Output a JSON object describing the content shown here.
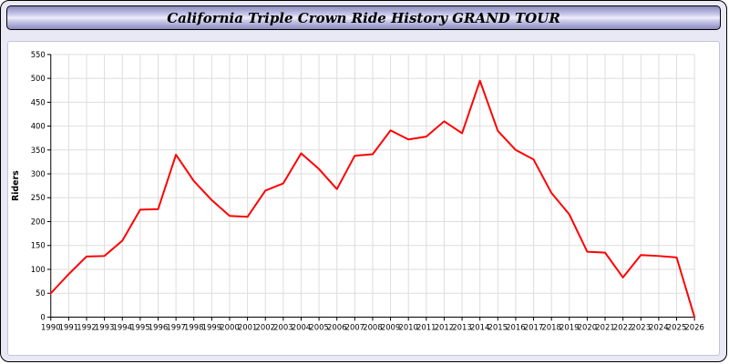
{
  "header": {
    "title": "California Triple Crown Ride History GRAND TOUR"
  },
  "colors": {
    "page_background": "#e9e9f5",
    "plot_background": "#ffffff",
    "grid": "#dddddd",
    "axis": "#000000",
    "line": "#ff0000"
  },
  "chart_data": {
    "type": "line",
    "title": "California Triple Crown Ride History GRAND TOUR",
    "xlabel": "",
    "ylabel": "Riders",
    "ylim": [
      0,
      550
    ],
    "ytick_step": 50,
    "grid": true,
    "legend": "none",
    "line_color": "#ff0000",
    "x": [
      1990,
      1991,
      1992,
      1993,
      1994,
      1995,
      1996,
      1997,
      1998,
      1999,
      2000,
      2001,
      2002,
      2003,
      2004,
      2005,
      2006,
      2007,
      2008,
      2009,
      2010,
      2011,
      2012,
      2013,
      2014,
      2015,
      2016,
      2017,
      2018,
      2019,
      2020,
      2021,
      2022,
      2023,
      2024,
      2025,
      2026
    ],
    "values": [
      50,
      90,
      127,
      128,
      160,
      225,
      226,
      340,
      285,
      245,
      212,
      210,
      265,
      280,
      343,
      310,
      268,
      338,
      341,
      391,
      372,
      378,
      410,
      385,
      495,
      390,
      350,
      330,
      260,
      215,
      137,
      135,
      83,
      130,
      128,
      125,
      0
    ]
  }
}
